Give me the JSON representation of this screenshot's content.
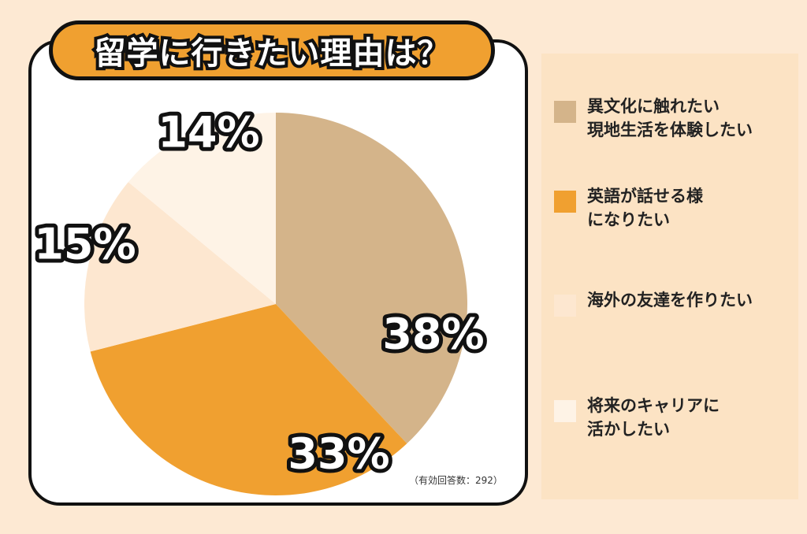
{
  "title": "留学に行きたい理由は？",
  "note": "（有効回答数：292）",
  "chart_data": {
    "type": "pie",
    "title": "留学に行きたい理由は？",
    "unit": "%",
    "slices": [
      {
        "label_lines": [
          "異文化に触れたい",
          "現地生活を体験したい"
        ],
        "value": 38,
        "display": "38%",
        "color": "#d4b48a"
      },
      {
        "label_lines": [
          "英語が話せる様",
          "になりたい"
        ],
        "value": 33,
        "display": "33%",
        "color": "#f0a030"
      },
      {
        "label_lines": [
          "海外の友達を作りたい"
        ],
        "value": 15,
        "display": "15%",
        "color": "#fde7d0"
      },
      {
        "label_lines": [
          "将来のキャリアに",
          "活かしたい"
        ],
        "value": 14,
        "display": "14%",
        "color": "#fef3e6"
      }
    ],
    "legend_position": "right"
  }
}
